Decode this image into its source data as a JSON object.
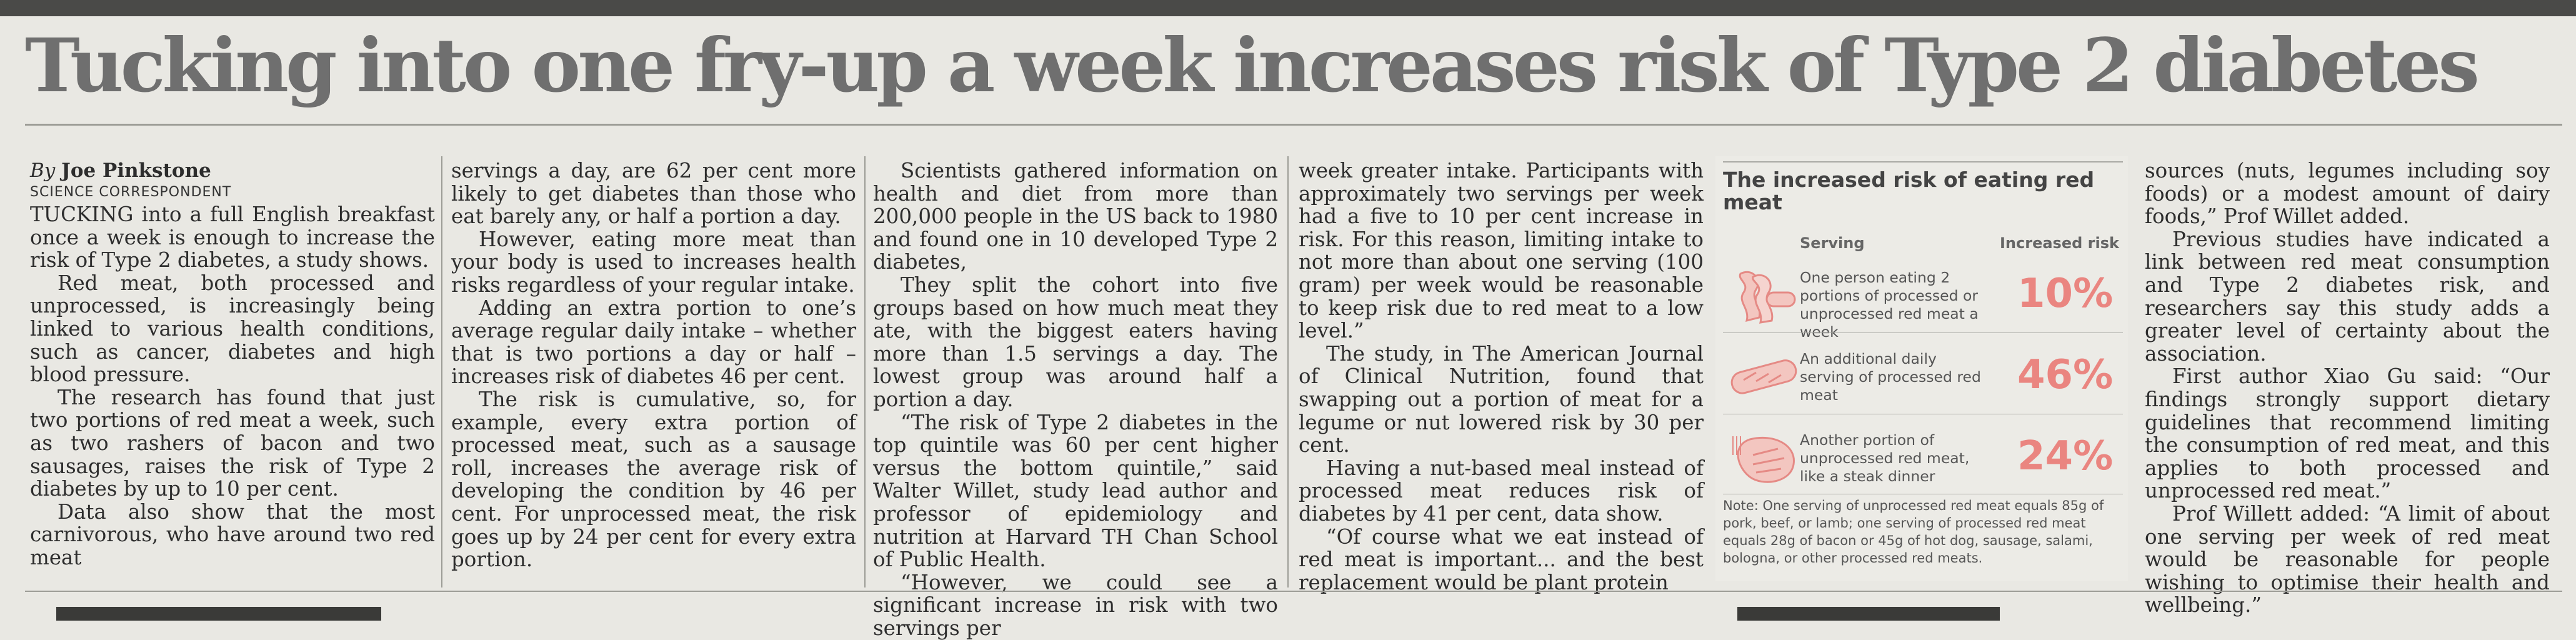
{
  "headline": "Tucking into one fry-up a week increases risk of Type 2 diabetes",
  "byline": {
    "by": "By",
    "name": "Joe Pinkstone",
    "role": "SCIENCE CORRESPONDENT"
  },
  "columns": [
    [
      "TUCKING into a full English breakfast once a week is enough to increase the risk of Type 2 diabetes, a study shows.",
      "Red meat, both processed and unprocessed, is increasingly being linked to various health conditions, such as cancer, diabetes and high blood pressure.",
      "The research has found that just two portions of red meat a week, such as two rashers of bacon and two sausages, raises the risk of Type 2 diabetes by up to 10 per cent.",
      "Data also show that the most carnivorous, who have around two red meat"
    ],
    [
      "servings a day, are 62 per cent more likely to get diabetes than those who eat barely any, or half a portion a day.",
      "However, eating more meat than your body is used to increases health risks regardless of your regular intake.",
      "Adding an extra portion to one’s average regular daily intake – whether that is two portions a day or half – increases risk of diabetes 46 per cent.",
      "The risk is cumulative, so, for example, every extra portion of processed meat, such as a sausage roll, increases the average risk of developing the condition by 46 per cent. For unprocessed meat, the risk goes up by 24 per cent for every extra portion."
    ],
    [
      "Scientists gathered information on health and diet from more than 200,000 people in the US back to 1980 and found one in 10 developed Type 2 diabetes,",
      "They split the cohort into five groups based on how much meat they ate, with the biggest eaters having more than 1.5 servings a day. The lowest group was around half a portion a day.",
      "“The risk of Type 2 diabetes in the top quintile was 60 per cent higher versus the bottom quintile,” said Walter Willet, study lead author and professor of epidemiology and nutrition at Harvard TH Chan School of Public Health.",
      "“However, we could see a significant increase in risk with two servings per"
    ],
    [
      "week greater intake. Participants with approximately two servings per week had a five to 10 per cent increase in risk. For this reason, limiting intake to not more than about one serving (100 gram) per week would be reasonable to keep risk due to red meat to a low level.”",
      "The study, in The American Journal of Clinical Nutrition, found that swapping out a portion of meat for a legume or nut lowered risk by 30 per cent.",
      "Having a nut-based meal instead of processed meat reduces risk of diabetes by 41 per cent, data show.",
      "“Of course what we eat instead of red meat is important... and the best replacement would be plant protein"
    ],
    [
      "sources (nuts, legumes including soy foods) or a modest amount of dairy foods,” Prof Willet added.",
      "Previous studies have indicated a link between red meat consumption and Type 2 diabetes risk, and researchers say this study adds a greater level of certainty about the association.",
      "First author Xiao Gu said: “Our findings strongly support dietary guidelines that recommend limiting the consumption of red meat, and this applies to both processed and unprocessed red meat.”",
      "Prof Willett added: “A limit of about one serving per week of red meat would be reasonable for people wishing to optimise their health and wellbeing.”"
    ]
  ],
  "infographic": {
    "title": "The increased risk of eating red meat",
    "col_serving": "Serving",
    "col_risk": "Increased risk",
    "rows": [
      {
        "icon": "bacon-sausage-icon",
        "desc": "One person eating 2 portions of processed or unprocessed red meat a week",
        "pct": "10%"
      },
      {
        "icon": "sausage-icon",
        "desc": "An additional daily serving of processed red meat",
        "pct": "46%"
      },
      {
        "icon": "steak-icon",
        "desc": "Another portion of unprocessed red meat, like a steak dinner",
        "pct": "24%"
      }
    ],
    "note": "Note: One serving of unprocessed red meat equals 85g of pork, beef, or lamb; one serving of processed red meat equals 28g of bacon or 45g of hot dog, sausage, salami, bologna, or other processed red meats."
  },
  "colors": {
    "accent": "#ea8580",
    "headline": "#6f6f6f"
  }
}
